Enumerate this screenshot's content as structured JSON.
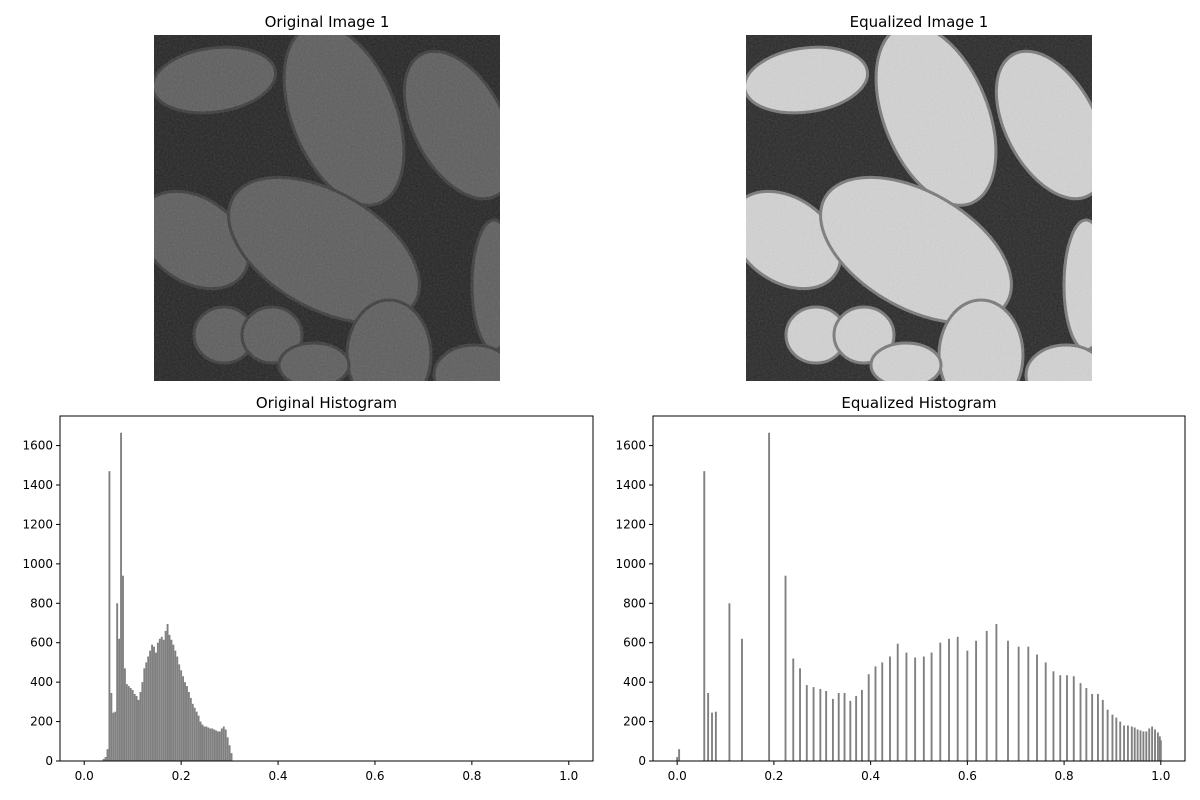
{
  "figure": {
    "image1_title": "Original Image 1",
    "image2_title": "Equalized Image 1"
  },
  "chart_data": [
    {
      "type": "bar",
      "title": "Original Histogram",
      "xlabel": "",
      "ylabel": "",
      "xlim": [
        -0.05,
        1.05
      ],
      "ylim": [
        0,
        1750
      ],
      "xticks": [
        "0.0",
        "0.2",
        "0.4",
        "0.6",
        "0.8",
        "1.0"
      ],
      "yticks": [
        "0",
        "200",
        "400",
        "600",
        "800",
        "1000",
        "1200",
        "1400",
        "1600"
      ],
      "bar_color": "#808080",
      "bar_width": 0.0039,
      "x": [
        0.04,
        0.044,
        0.048,
        0.052,
        0.056,
        0.06,
        0.064,
        0.068,
        0.072,
        0.076,
        0.08,
        0.084,
        0.088,
        0.092,
        0.096,
        0.1,
        0.104,
        0.108,
        0.112,
        0.116,
        0.12,
        0.124,
        0.128,
        0.132,
        0.136,
        0.14,
        0.144,
        0.148,
        0.152,
        0.156,
        0.16,
        0.164,
        0.168,
        0.172,
        0.176,
        0.18,
        0.184,
        0.188,
        0.192,
        0.196,
        0.2,
        0.204,
        0.208,
        0.212,
        0.216,
        0.22,
        0.224,
        0.228,
        0.232,
        0.236,
        0.24,
        0.244,
        0.248,
        0.252,
        0.256,
        0.26,
        0.264,
        0.268,
        0.272,
        0.276,
        0.28,
        0.284,
        0.288,
        0.292,
        0.296,
        0.3,
        0.304
      ],
      "values": [
        10,
        20,
        60,
        1470,
        345,
        245,
        250,
        800,
        620,
        1665,
        940,
        470,
        390,
        380,
        370,
        360,
        340,
        330,
        310,
        350,
        400,
        470,
        500,
        530,
        560,
        590,
        580,
        550,
        600,
        620,
        630,
        615,
        660,
        695,
        640,
        615,
        590,
        560,
        530,
        490,
        460,
        430,
        400,
        380,
        350,
        320,
        290,
        270,
        250,
        230,
        200,
        185,
        175,
        175,
        170,
        165,
        165,
        160,
        155,
        150,
        150,
        165,
        175,
        160,
        120,
        80,
        40
      ]
    },
    {
      "type": "bar",
      "title": "Equalized Histogram",
      "xlabel": "",
      "ylabel": "",
      "xlim": [
        -0.05,
        1.05
      ],
      "ylim": [
        0,
        1750
      ],
      "xticks": [
        "0.0",
        "0.2",
        "0.4",
        "0.6",
        "0.8",
        "1.0"
      ],
      "yticks": [
        "0",
        "200",
        "400",
        "600",
        "800",
        "1000",
        "1200",
        "1400",
        "1600"
      ],
      "bar_color": "#808080",
      "bar_width": 0.0039,
      "x": [
        0.0,
        0.004,
        0.056,
        0.064,
        0.072,
        0.08,
        0.108,
        0.134,
        0.19,
        0.224,
        0.24,
        0.254,
        0.268,
        0.282,
        0.296,
        0.308,
        0.322,
        0.334,
        0.346,
        0.358,
        0.37,
        0.382,
        0.396,
        0.41,
        0.424,
        0.44,
        0.456,
        0.474,
        0.492,
        0.51,
        0.526,
        0.544,
        0.562,
        0.58,
        0.6,
        0.618,
        0.64,
        0.66,
        0.684,
        0.706,
        0.726,
        0.744,
        0.762,
        0.778,
        0.792,
        0.806,
        0.82,
        0.834,
        0.846,
        0.858,
        0.87,
        0.88,
        0.89,
        0.9,
        0.908,
        0.916,
        0.924,
        0.932,
        0.94,
        0.946,
        0.952,
        0.958,
        0.964,
        0.97,
        0.976,
        0.982,
        0.988,
        0.994,
        0.998,
        1.0
      ],
      "values": [
        20,
        60,
        1470,
        345,
        245,
        250,
        800,
        620,
        1665,
        940,
        520,
        470,
        385,
        375,
        365,
        355,
        315,
        345,
        345,
        305,
        330,
        360,
        440,
        480,
        500,
        530,
        595,
        550,
        525,
        530,
        550,
        600,
        620,
        630,
        560,
        610,
        660,
        695,
        610,
        580,
        580,
        540,
        500,
        455,
        435,
        435,
        430,
        395,
        370,
        340,
        340,
        310,
        260,
        235,
        220,
        200,
        180,
        180,
        175,
        170,
        160,
        155,
        150,
        150,
        165,
        175,
        160,
        145,
        125,
        105
      ]
    }
  ]
}
